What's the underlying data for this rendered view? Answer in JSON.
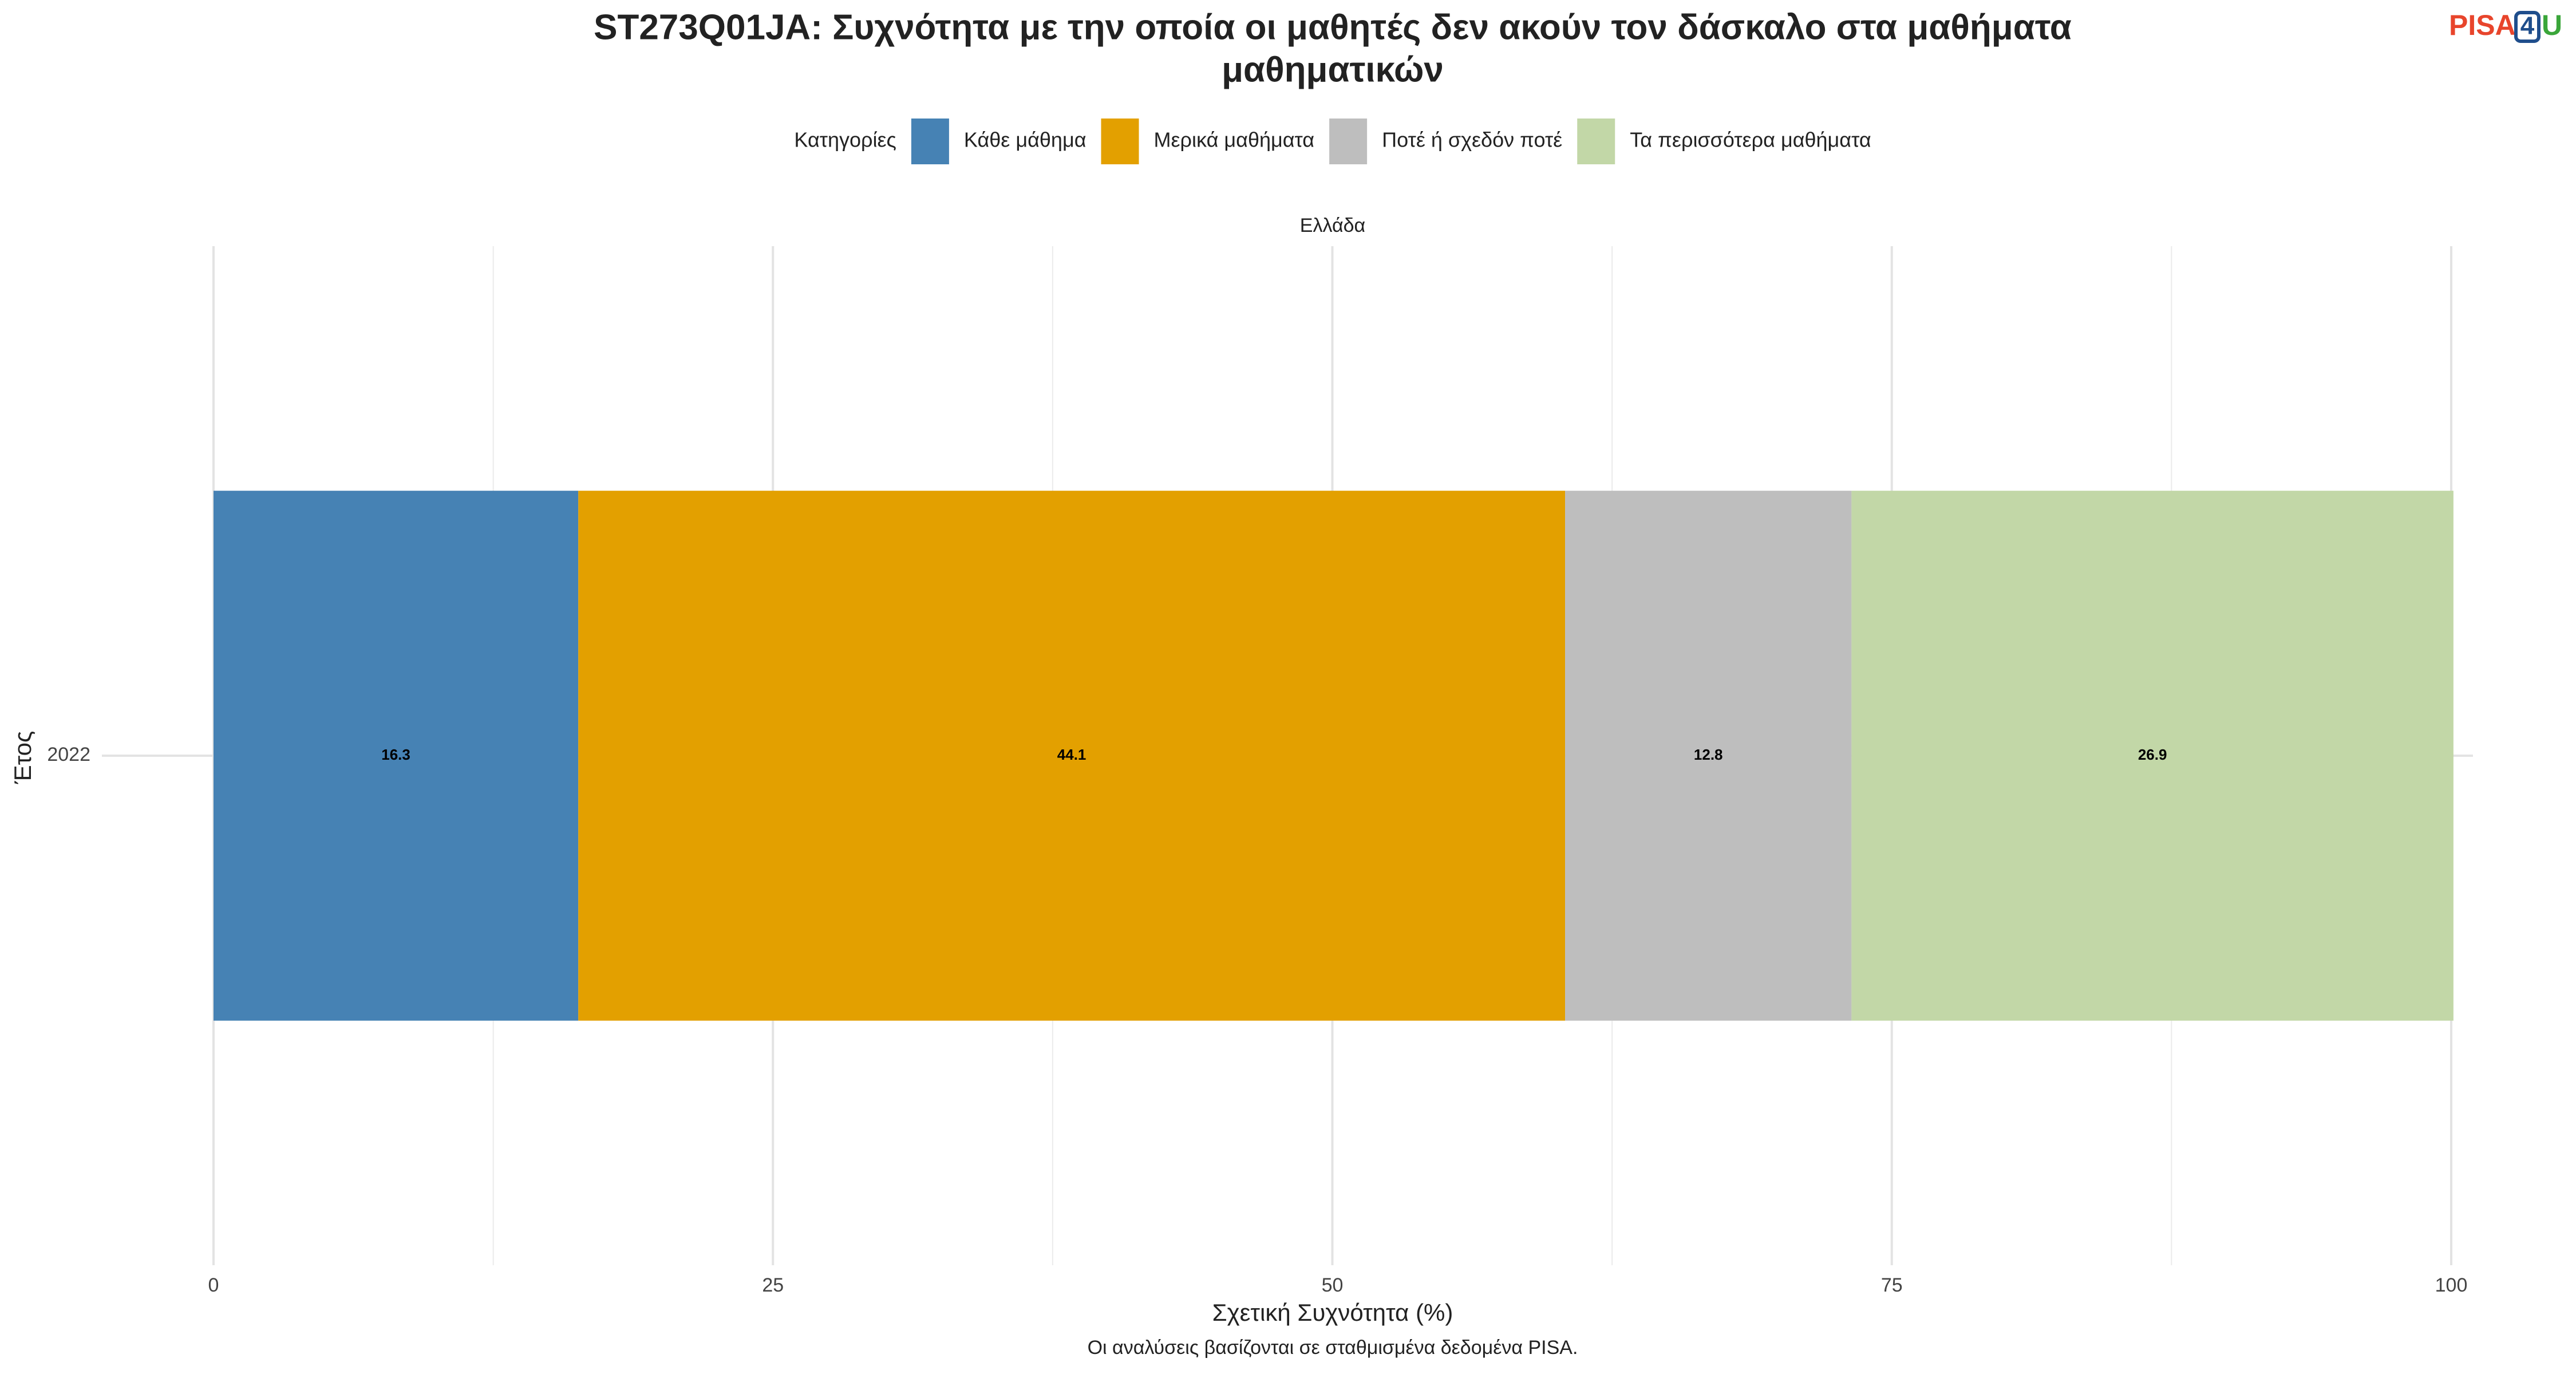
{
  "chart_data": {
    "type": "stacked-bar-horizontal",
    "title": "ST273Q01JA: Συχνότητα με την οποία οι μαθητές δεν ακούν τον δάσκαλο στα μαθήματα",
    "title_line2": "μαθηματικών",
    "facet": "Ελλάδα",
    "legend_title": "Κατηγορίες",
    "legend_position": "top",
    "categories": [
      "2022"
    ],
    "series": [
      {
        "name": "Κάθε μάθημα",
        "color": "#4682b4",
        "values": [
          16.3
        ]
      },
      {
        "name": "Μερικά μαθήματα",
        "color": "#e3a000",
        "values": [
          44.1
        ]
      },
      {
        "name": "Ποτέ ή σχεδόν ποτέ",
        "color": "#bebebe",
        "values": [
          12.8
        ]
      },
      {
        "name": "Τα περισσότερα μαθήματα",
        "color": "#c2d7a7",
        "values": [
          26.9
        ]
      }
    ],
    "xlim": [
      0,
      100
    ],
    "xticks": [
      0,
      25,
      50,
      75,
      100
    ],
    "xminorticks": [
      12.5,
      37.5,
      62.5,
      87.5
    ],
    "grid": true,
    "x_label": "Σχετική Συχνότητα (%)",
    "y_label": "Έτος",
    "caption": "Οι αναλύσεις βασίζονται σε σταθμισμένα δεδομένα PISA."
  },
  "logo": {
    "part1": "PISA",
    "part2": "4",
    "part3": "U"
  }
}
